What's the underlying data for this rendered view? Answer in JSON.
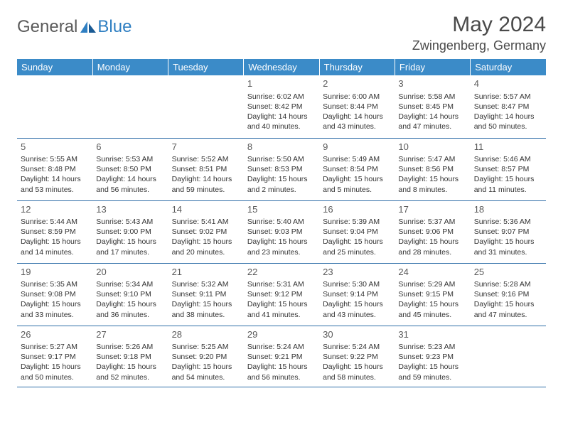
{
  "brand": {
    "part1": "General",
    "part2": "Blue"
  },
  "title": "May 2024",
  "location": "Zwingenberg, Germany",
  "colors": {
    "header_bg": "#3b8bc8",
    "header_text": "#ffffff",
    "border": "#2f6ea8",
    "text": "#333333",
    "title_text": "#4a4a4a",
    "brand_gray": "#5a5a5a",
    "brand_blue": "#2f7fc2"
  },
  "day_headers": [
    "Sunday",
    "Monday",
    "Tuesday",
    "Wednesday",
    "Thursday",
    "Friday",
    "Saturday"
  ],
  "weeks": [
    [
      null,
      null,
      null,
      {
        "n": "1",
        "sr": "6:02 AM",
        "ss": "8:42 PM",
        "dl": "14 hours and 40 minutes."
      },
      {
        "n": "2",
        "sr": "6:00 AM",
        "ss": "8:44 PM",
        "dl": "14 hours and 43 minutes."
      },
      {
        "n": "3",
        "sr": "5:58 AM",
        "ss": "8:45 PM",
        "dl": "14 hours and 47 minutes."
      },
      {
        "n": "4",
        "sr": "5:57 AM",
        "ss": "8:47 PM",
        "dl": "14 hours and 50 minutes."
      }
    ],
    [
      {
        "n": "5",
        "sr": "5:55 AM",
        "ss": "8:48 PM",
        "dl": "14 hours and 53 minutes."
      },
      {
        "n": "6",
        "sr": "5:53 AM",
        "ss": "8:50 PM",
        "dl": "14 hours and 56 minutes."
      },
      {
        "n": "7",
        "sr": "5:52 AM",
        "ss": "8:51 PM",
        "dl": "14 hours and 59 minutes."
      },
      {
        "n": "8",
        "sr": "5:50 AM",
        "ss": "8:53 PM",
        "dl": "15 hours and 2 minutes."
      },
      {
        "n": "9",
        "sr": "5:49 AM",
        "ss": "8:54 PM",
        "dl": "15 hours and 5 minutes."
      },
      {
        "n": "10",
        "sr": "5:47 AM",
        "ss": "8:56 PM",
        "dl": "15 hours and 8 minutes."
      },
      {
        "n": "11",
        "sr": "5:46 AM",
        "ss": "8:57 PM",
        "dl": "15 hours and 11 minutes."
      }
    ],
    [
      {
        "n": "12",
        "sr": "5:44 AM",
        "ss": "8:59 PM",
        "dl": "15 hours and 14 minutes."
      },
      {
        "n": "13",
        "sr": "5:43 AM",
        "ss": "9:00 PM",
        "dl": "15 hours and 17 minutes."
      },
      {
        "n": "14",
        "sr": "5:41 AM",
        "ss": "9:02 PM",
        "dl": "15 hours and 20 minutes."
      },
      {
        "n": "15",
        "sr": "5:40 AM",
        "ss": "9:03 PM",
        "dl": "15 hours and 23 minutes."
      },
      {
        "n": "16",
        "sr": "5:39 AM",
        "ss": "9:04 PM",
        "dl": "15 hours and 25 minutes."
      },
      {
        "n": "17",
        "sr": "5:37 AM",
        "ss": "9:06 PM",
        "dl": "15 hours and 28 minutes."
      },
      {
        "n": "18",
        "sr": "5:36 AM",
        "ss": "9:07 PM",
        "dl": "15 hours and 31 minutes."
      }
    ],
    [
      {
        "n": "19",
        "sr": "5:35 AM",
        "ss": "9:08 PM",
        "dl": "15 hours and 33 minutes."
      },
      {
        "n": "20",
        "sr": "5:34 AM",
        "ss": "9:10 PM",
        "dl": "15 hours and 36 minutes."
      },
      {
        "n": "21",
        "sr": "5:32 AM",
        "ss": "9:11 PM",
        "dl": "15 hours and 38 minutes."
      },
      {
        "n": "22",
        "sr": "5:31 AM",
        "ss": "9:12 PM",
        "dl": "15 hours and 41 minutes."
      },
      {
        "n": "23",
        "sr": "5:30 AM",
        "ss": "9:14 PM",
        "dl": "15 hours and 43 minutes."
      },
      {
        "n": "24",
        "sr": "5:29 AM",
        "ss": "9:15 PM",
        "dl": "15 hours and 45 minutes."
      },
      {
        "n": "25",
        "sr": "5:28 AM",
        "ss": "9:16 PM",
        "dl": "15 hours and 47 minutes."
      }
    ],
    [
      {
        "n": "26",
        "sr": "5:27 AM",
        "ss": "9:17 PM",
        "dl": "15 hours and 50 minutes."
      },
      {
        "n": "27",
        "sr": "5:26 AM",
        "ss": "9:18 PM",
        "dl": "15 hours and 52 minutes."
      },
      {
        "n": "28",
        "sr": "5:25 AM",
        "ss": "9:20 PM",
        "dl": "15 hours and 54 minutes."
      },
      {
        "n": "29",
        "sr": "5:24 AM",
        "ss": "9:21 PM",
        "dl": "15 hours and 56 minutes."
      },
      {
        "n": "30",
        "sr": "5:24 AM",
        "ss": "9:22 PM",
        "dl": "15 hours and 58 minutes."
      },
      {
        "n": "31",
        "sr": "5:23 AM",
        "ss": "9:23 PM",
        "dl": "15 hours and 59 minutes."
      },
      null
    ]
  ],
  "labels": {
    "sunrise": "Sunrise:",
    "sunset": "Sunset:",
    "daylight": "Daylight:"
  }
}
